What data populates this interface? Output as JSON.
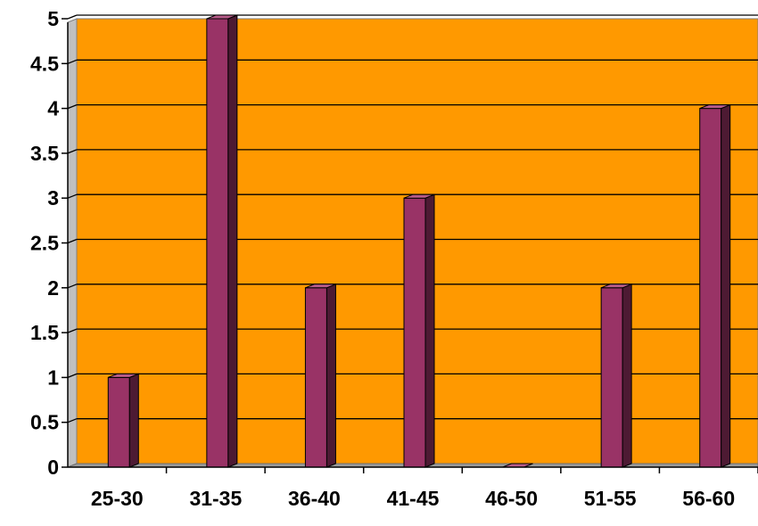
{
  "chart_data": {
    "type": "bar",
    "categories": [
      "25-30",
      "31-35",
      "36-40",
      "41-45",
      "46-50",
      "51-55",
      "56-60"
    ],
    "values": [
      1,
      5,
      2,
      3,
      0,
      2,
      4
    ],
    "title": "",
    "xlabel": "",
    "ylabel": "",
    "ylim": [
      0,
      5
    ],
    "y_ticks": [
      "0",
      "0.5",
      "1",
      "1.5",
      "2",
      "2.5",
      "3",
      "3.5",
      "4",
      "4.5",
      "5"
    ],
    "grid": true,
    "legend": "none",
    "style": "3d-column",
    "colors": {
      "plot_background": "#FF9900",
      "bar_front": "#993366",
      "bar_side": "#4D1A33",
      "bar_top": "#B85C8A",
      "floor": "#999999",
      "wall_side": "#C0C0C0",
      "grid": "#000000"
    }
  }
}
